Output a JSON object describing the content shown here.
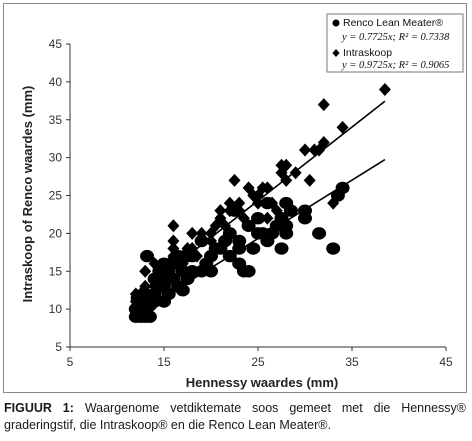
{
  "chart_data": {
    "type": "scatter",
    "xlabel": "Hennessy waardes (mm)",
    "ylabel": "Intraskoop of Renco waardes (mm)",
    "xlim": [
      5,
      45
    ],
    "ylim": [
      5,
      45
    ],
    "xticks": [
      5,
      15,
      25,
      35,
      45
    ],
    "yticks": [
      5,
      10,
      15,
      20,
      25,
      30,
      35,
      40,
      45
    ],
    "grid": false,
    "legend_position": "top-right",
    "series": [
      {
        "name": "Renco Lean Meater®",
        "equation": "y = 0.7725x; R² = 0.7338",
        "slope": 0.7725,
        "marker": "circle",
        "color": "#000000",
        "fit_x": [
          12,
          38.5
        ],
        "points": [
          [
            12,
            9
          ],
          [
            12.5,
            9
          ],
          [
            13,
            9
          ],
          [
            13.5,
            9
          ],
          [
            12,
            10
          ],
          [
            12.5,
            10
          ],
          [
            13,
            11
          ],
          [
            13.5,
            10.5
          ],
          [
            14,
            11
          ],
          [
            12.2,
            11.5
          ],
          [
            13,
            12
          ],
          [
            14,
            12
          ],
          [
            15,
            11
          ],
          [
            13.2,
            17
          ],
          [
            14.5,
            13
          ],
          [
            15,
            13
          ],
          [
            16,
            14
          ],
          [
            15.5,
            15
          ],
          [
            16,
            16
          ],
          [
            17,
            15
          ],
          [
            16.5,
            13
          ],
          [
            17,
            12.5
          ],
          [
            17.5,
            14
          ],
          [
            18,
            15
          ],
          [
            18,
            17
          ],
          [
            19,
            15
          ],
          [
            19.5,
            16
          ],
          [
            20,
            17
          ],
          [
            20,
            15
          ],
          [
            21,
            18
          ],
          [
            21.5,
            19
          ],
          [
            22,
            20
          ],
          [
            22,
            17
          ],
          [
            23,
            18
          ],
          [
            23,
            16
          ],
          [
            23.5,
            15
          ],
          [
            24,
            15
          ],
          [
            23,
            19
          ],
          [
            24,
            21
          ],
          [
            25,
            20
          ],
          [
            25,
            22
          ],
          [
            25.5,
            20
          ],
          [
            26,
            19
          ],
          [
            26.5,
            20
          ],
          [
            27,
            21
          ],
          [
            27.5,
            22
          ],
          [
            28,
            21
          ],
          [
            28,
            20
          ],
          [
            27.5,
            18
          ],
          [
            28.5,
            23
          ],
          [
            28,
            24
          ],
          [
            30,
            22
          ],
          [
            30,
            23
          ],
          [
            31.5,
            20
          ],
          [
            33,
            18
          ],
          [
            33.5,
            25
          ],
          [
            34,
            26
          ],
          [
            16.5,
            17
          ],
          [
            17.5,
            17
          ],
          [
            14,
            14
          ],
          [
            15,
            16
          ],
          [
            19,
            19
          ],
          [
            20.5,
            18
          ],
          [
            22.5,
            23
          ],
          [
            24.5,
            18
          ],
          [
            26,
            24
          ],
          [
            15.5,
            12
          ],
          [
            14.5,
            15
          ]
        ]
      },
      {
        "name": "Intraskoop",
        "equation": "y = 0.9725x; R² = 0.9065",
        "slope": 0.9725,
        "marker": "diamond",
        "color": "#000000",
        "fit_x": [
          12,
          38.5
        ],
        "points": [
          [
            12,
            11
          ],
          [
            12,
            12
          ],
          [
            12.5,
            12
          ],
          [
            13,
            11
          ],
          [
            13,
            13
          ],
          [
            13,
            15
          ],
          [
            14,
            13
          ],
          [
            14,
            14
          ],
          [
            14,
            16
          ],
          [
            15,
            14
          ],
          [
            15,
            15
          ],
          [
            15.5,
            16
          ],
          [
            16,
            17
          ],
          [
            16,
            21
          ],
          [
            16,
            19
          ],
          [
            17,
            17
          ],
          [
            17,
            16
          ],
          [
            17.5,
            18
          ],
          [
            18,
            18
          ],
          [
            18,
            20
          ],
          [
            19,
            19
          ],
          [
            19,
            20
          ],
          [
            20,
            19
          ],
          [
            20,
            20
          ],
          [
            20.5,
            21
          ],
          [
            21,
            22
          ],
          [
            21,
            23
          ],
          [
            21.5,
            21
          ],
          [
            22,
            23
          ],
          [
            22,
            24
          ],
          [
            22.5,
            27
          ],
          [
            23,
            23
          ],
          [
            23,
            24
          ],
          [
            23.5,
            22
          ],
          [
            24,
            21
          ],
          [
            24,
            26
          ],
          [
            24.5,
            25
          ],
          [
            25,
            25
          ],
          [
            25,
            24
          ],
          [
            25.5,
            26
          ],
          [
            26,
            26
          ],
          [
            26.5,
            24
          ],
          [
            27,
            23
          ],
          [
            27.5,
            28
          ],
          [
            27.5,
            29
          ],
          [
            28,
            27
          ],
          [
            28,
            29
          ],
          [
            29,
            28
          ],
          [
            30,
            31
          ],
          [
            30.5,
            27
          ],
          [
            31,
            31
          ],
          [
            32,
            32
          ],
          [
            32,
            37
          ],
          [
            33,
            24
          ],
          [
            34,
            34
          ],
          [
            38.5,
            39
          ],
          [
            16,
            18
          ],
          [
            18.5,
            17
          ],
          [
            22,
            20
          ],
          [
            26,
            22
          ],
          [
            31.5,
            31
          ]
        ]
      }
    ]
  },
  "caption": {
    "label": "FIGUUR 1:",
    "text": "Waargenome vetdiktemate soos gemeet met die Hennessy® graderingstif, die Intraskoop® en die Renco Lean Meater®."
  }
}
